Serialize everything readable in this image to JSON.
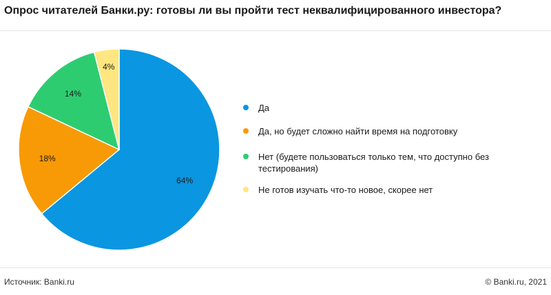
{
  "title": "Опрос читателей Банки.ру: готовы ли вы пройти тест неквалифицированного инвестора?",
  "footer": {
    "source": "Источник: Banki.ru",
    "copyright": "© Banki.ru, 2021"
  },
  "chart_data": {
    "type": "pie",
    "title": "Опрос читателей Банки.ру: готовы ли вы пройти тест неквалифицированного инвестора?",
    "categories": [
      "Да",
      "Да, но будет сложно найти время на подготовку",
      "Нет (будете пользоваться только тем, что доступно без тестирования)",
      "Не готов изучать что-то новое, скорее нет"
    ],
    "values": [
      64,
      18,
      14,
      4
    ],
    "labels": [
      "64%",
      "18%",
      "14%",
      "4%"
    ],
    "colors": [
      "#0a96e0",
      "#f79a05",
      "#2ecc71",
      "#ffe680"
    ],
    "legend_placement": "right"
  }
}
